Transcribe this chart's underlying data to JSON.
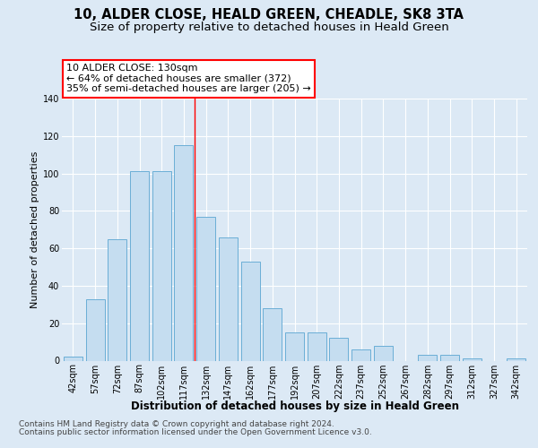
{
  "title1": "10, ALDER CLOSE, HEALD GREEN, CHEADLE, SK8 3TA",
  "title2": "Size of property relative to detached houses in Heald Green",
  "xlabel": "Distribution of detached houses by size in Heald Green",
  "ylabel": "Number of detached properties",
  "categories": [
    "42sqm",
    "57sqm",
    "72sqm",
    "87sqm",
    "102sqm",
    "117sqm",
    "132sqm",
    "147sqm",
    "162sqm",
    "177sqm",
    "192sqm",
    "207sqm",
    "222sqm",
    "237sqm",
    "252sqm",
    "267sqm",
    "282sqm",
    "297sqm",
    "312sqm",
    "327sqm",
    "342sqm"
  ],
  "values": [
    2,
    33,
    65,
    101,
    101,
    115,
    77,
    66,
    53,
    28,
    15,
    15,
    12,
    6,
    8,
    0,
    3,
    3,
    1,
    0,
    1
  ],
  "bar_color": "#c5ddf0",
  "bar_edge_color": "#6aaed6",
  "annotation_text": "10 ALDER CLOSE: 130sqm\n← 64% of detached houses are smaller (372)\n35% of semi-detached houses are larger (205) →",
  "footer1": "Contains HM Land Registry data © Crown copyright and database right 2024.",
  "footer2": "Contains public sector information licensed under the Open Government Licence v3.0.",
  "ylim": [
    0,
    140
  ],
  "yticks": [
    0,
    20,
    40,
    60,
    80,
    100,
    120,
    140
  ],
  "bg_color": "#dce9f5",
  "plot_bg_color": "#dce9f5",
  "grid_color": "#ffffff",
  "red_line_after_bar": 5,
  "title1_fontsize": 10.5,
  "title2_fontsize": 9.5,
  "xlabel_fontsize": 8.5,
  "ylabel_fontsize": 8,
  "tick_fontsize": 7,
  "footer_fontsize": 6.5,
  "annotation_fontsize": 8
}
